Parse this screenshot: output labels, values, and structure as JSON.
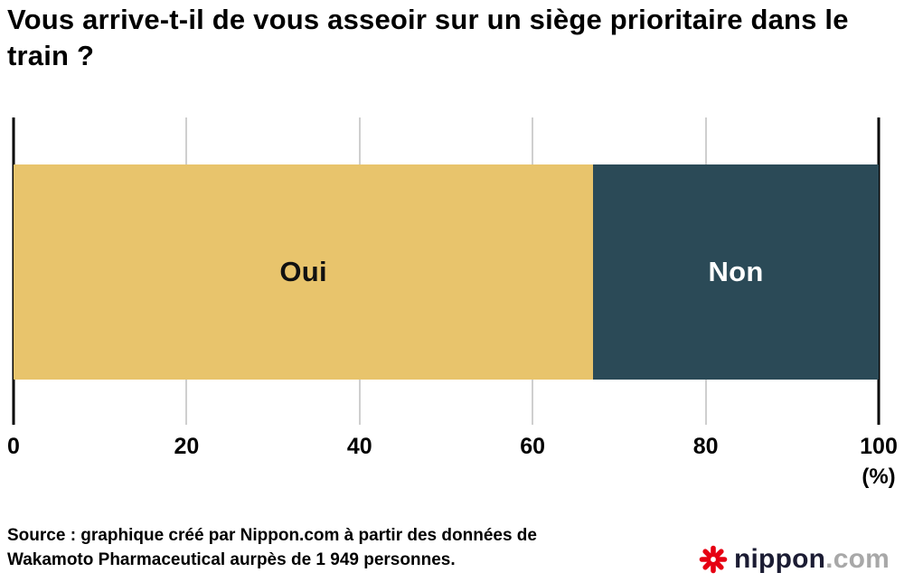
{
  "title": "Vous arrive-t-il de vous asseoir sur un siège prioritaire dans le train ?",
  "chart_data": {
    "type": "bar",
    "orientation": "horizontal-stacked",
    "title": "Vous arrive-t-il de vous asseoir sur un siège prioritaire dans le train ?",
    "categories": [
      "Oui",
      "Non"
    ],
    "values": [
      67,
      33
    ],
    "unit": "%",
    "colors": [
      "#e8c46c",
      "#2b4a57"
    ],
    "label_colors": [
      "#111111",
      "#ffffff"
    ],
    "x_ticks": [
      0,
      20,
      40,
      60,
      80,
      100
    ],
    "xlim": [
      0,
      100
    ],
    "axis_unit_label": "(%)",
    "grid": true,
    "legend": "none",
    "sample_size_text": "1 949 personnes"
  },
  "source": {
    "line1": "Source : graphique créé par Nippon.com à partir des données de",
    "line2": "Wakamoto Pharmaceutical aurpès de 1 949 personnes."
  },
  "logo": {
    "icon": "flower-asterisk",
    "icon_color": "#e60012",
    "name": "nippon",
    "tld": ".com"
  }
}
